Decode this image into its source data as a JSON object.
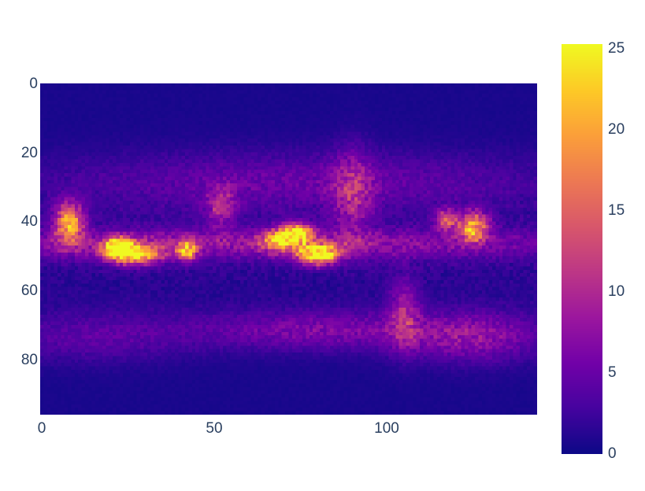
{
  "chart_data": {
    "type": "heatmap",
    "title": "",
    "xlabel": "",
    "ylabel": "",
    "grid_size": {
      "cols": 144,
      "rows": 96
    },
    "xlim": [
      -0.5,
      143.5
    ],
    "ylim": [
      95.5,
      -0.5
    ],
    "y_reversed": true,
    "x_ticks": [
      "0",
      "50",
      "100"
    ],
    "y_ticks": [
      "0",
      "20",
      "40",
      "60",
      "80"
    ],
    "colorbar": {
      "range": [
        0,
        25
      ],
      "ticks": [
        "0",
        "5",
        "10",
        "15",
        "20",
        "25"
      ],
      "colorscale": "plasma",
      "colors": [
        "#0d0887",
        "#46039f",
        "#7201a8",
        "#9c179e",
        "#bd3786",
        "#d8576b",
        "#ed7953",
        "#fb9f3a",
        "#fdca26",
        "#f0f921"
      ]
    },
    "baseline_value": 0.6,
    "features": [
      {
        "desc": "tropical band core",
        "row": 46,
        "col": 60,
        "rh": 3,
        "cw": 75,
        "value": 6.5
      },
      {
        "desc": "hotspot left 1",
        "row": 47,
        "col": 22,
        "rh": 2,
        "cw": 3,
        "value": 22
      },
      {
        "desc": "hotspot left 2",
        "row": 49,
        "col": 27,
        "rh": 2,
        "cw": 5,
        "value": 21
      },
      {
        "desc": "hotspot left edge",
        "row": 40,
        "col": 8,
        "rh": 4,
        "cw": 3,
        "value": 18
      },
      {
        "desc": "hotspot mid-left",
        "row": 48,
        "col": 42,
        "rh": 2,
        "cw": 2,
        "value": 19
      },
      {
        "desc": "hotspot center 1",
        "row": 43,
        "col": 74,
        "rh": 2,
        "cw": 3,
        "value": 24
      },
      {
        "desc": "hotspot center 2",
        "row": 49,
        "col": 80,
        "rh": 2,
        "cw": 4,
        "value": 25
      },
      {
        "desc": "hotspot center 3",
        "row": 45,
        "col": 68,
        "rh": 2,
        "cw": 3,
        "value": 17
      },
      {
        "desc": "hotspot right",
        "row": 41,
        "col": 125,
        "rh": 3,
        "cw": 3,
        "value": 19
      },
      {
        "desc": "hotspot right 2",
        "row": 39,
        "col": 117,
        "rh": 2,
        "cw": 2,
        "value": 14
      },
      {
        "desc": "northern band",
        "row": 28,
        "col": 75,
        "rh": 6,
        "cw": 50,
        "value": 4
      },
      {
        "desc": "southern band left",
        "row": 73,
        "col": 15,
        "rh": 5,
        "cw": 20,
        "value": 3.5
      },
      {
        "desc": "southern band center",
        "row": 71,
        "col": 80,
        "rh": 4,
        "cw": 25,
        "value": 5.5
      },
      {
        "desc": "southern band right",
        "row": 73,
        "col": 125,
        "rh": 5,
        "cw": 14,
        "value": 6.5
      },
      {
        "desc": "north streak",
        "row": 32,
        "col": 90,
        "rh": 9,
        "cw": 4,
        "value": 7
      },
      {
        "desc": "north streak 2",
        "row": 35,
        "col": 52,
        "rh": 4,
        "cw": 3,
        "value": 8
      },
      {
        "desc": "south streak",
        "row": 66,
        "col": 105,
        "rh": 7,
        "cw": 3,
        "value": 7
      }
    ]
  }
}
